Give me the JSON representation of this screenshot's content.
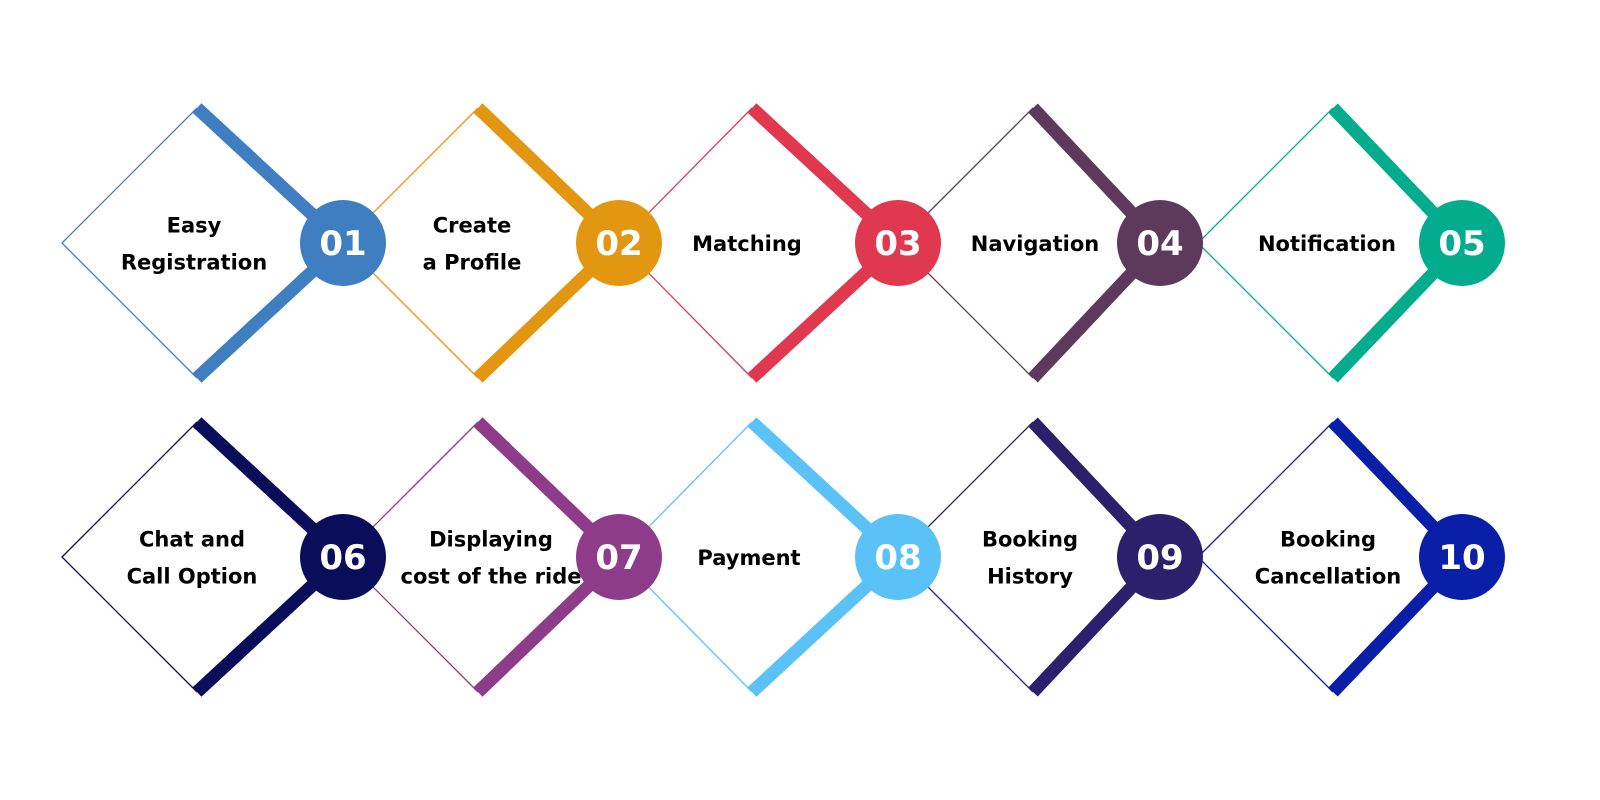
{
  "steps": [
    {
      "number": "01",
      "label": [
        "Easy",
        "Registration"
      ],
      "color": "#3f7fc1"
    },
    {
      "number": "02",
      "label": [
        "Create",
        "a Profile"
      ],
      "color": "#e3960f"
    },
    {
      "number": "03",
      "label": [
        "Matching"
      ],
      "color": "#e0384f"
    },
    {
      "number": "04",
      "label": [
        "Navigation"
      ],
      "color": "#5d3a5c"
    },
    {
      "number": "05",
      "label": [
        "Notification"
      ],
      "color": "#04ac8e"
    },
    {
      "number": "06",
      "label": [
        "Chat and",
        "Call Option"
      ],
      "color": "#0a0e5a"
    },
    {
      "number": "07",
      "label": [
        "Displaying",
        "cost of the ride"
      ],
      "color": "#8e3c8a"
    },
    {
      "number": "08",
      "label": [
        "Payment"
      ],
      "color": "#5bc2f8"
    },
    {
      "number": "09",
      "label": [
        "Booking",
        "History"
      ],
      "color": "#2c1f6b"
    },
    {
      "number": "10",
      "label": [
        "Booking",
        "Cancellation"
      ],
      "color": "#0a1fa8"
    }
  ]
}
